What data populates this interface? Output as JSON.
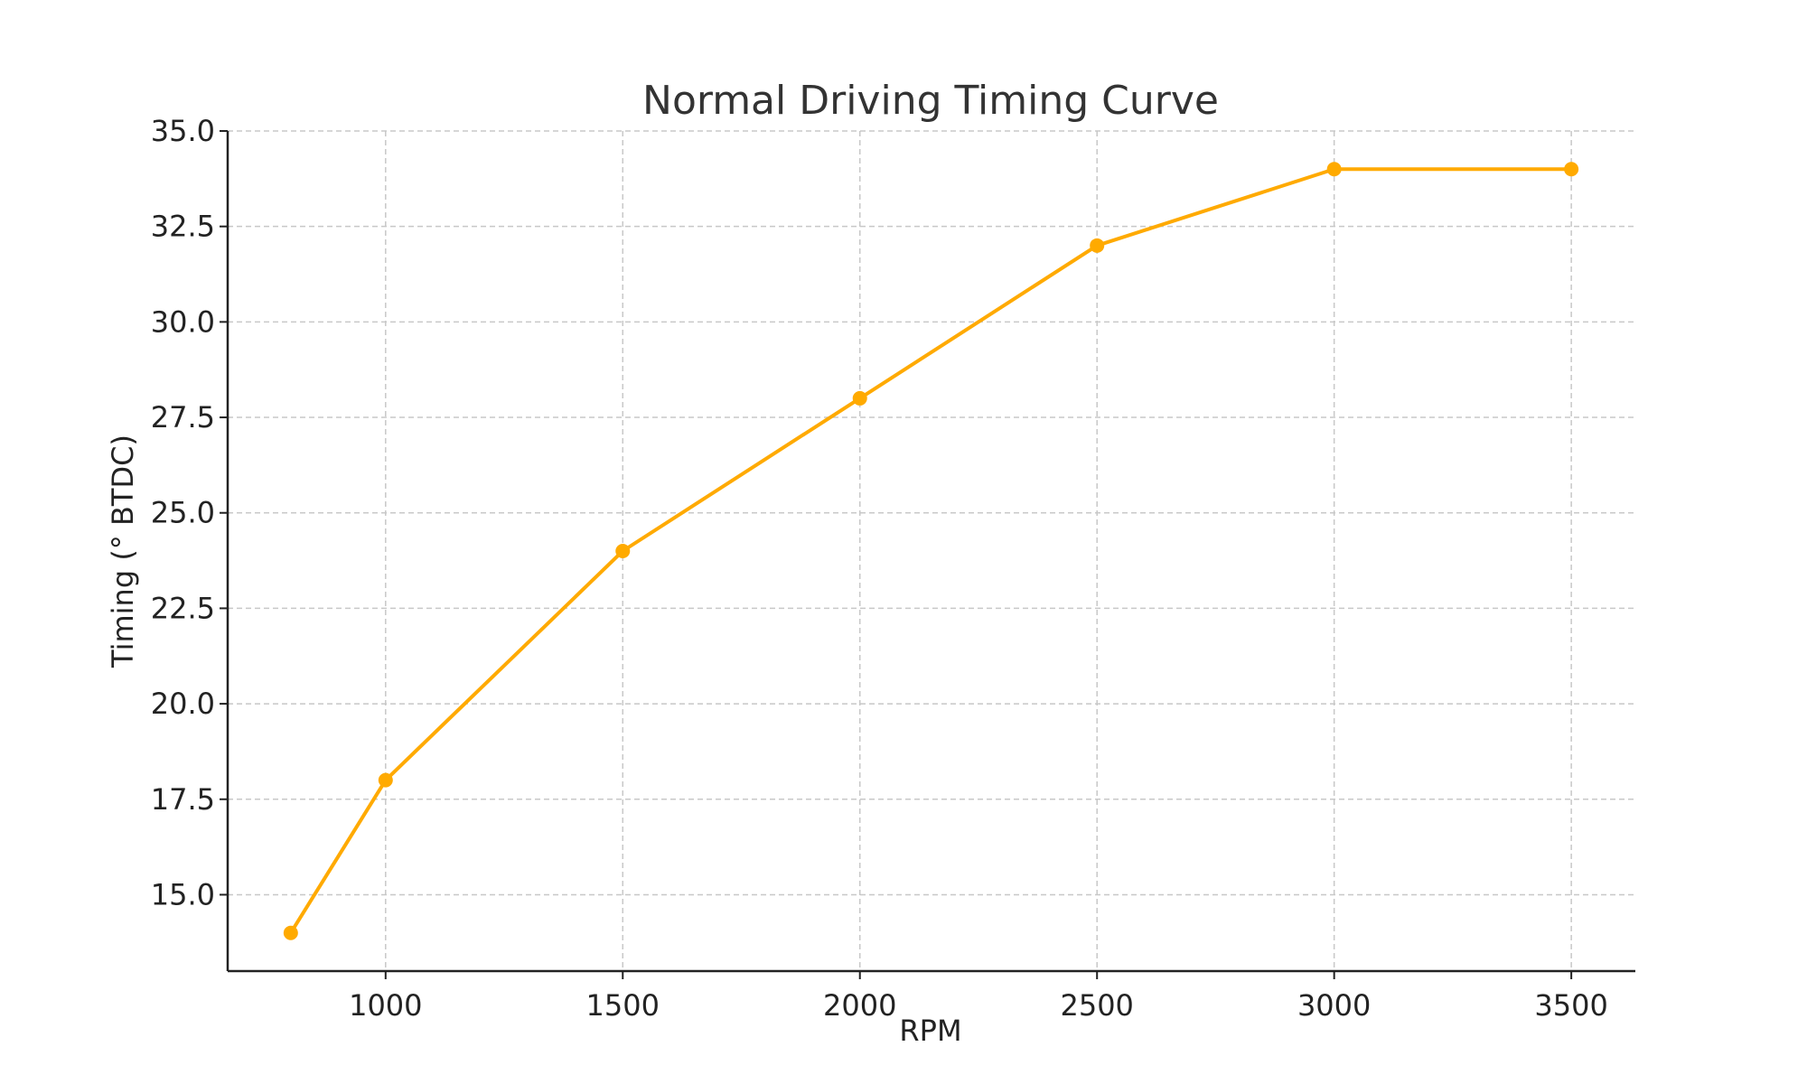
{
  "chart_data": {
    "type": "line",
    "title": "Normal Driving Timing Curve",
    "xlabel": "RPM",
    "ylabel": "Timing (° BTDC)",
    "x": [
      800,
      1000,
      1500,
      2000,
      2500,
      3000,
      3500
    ],
    "series": [
      {
        "values": [
          14,
          18,
          24,
          28,
          32,
          34,
          34
        ],
        "color": "#FFAA00"
      }
    ],
    "xlim": [
      667,
      3635
    ],
    "ylim": [
      13,
      35
    ],
    "xticks": [
      "1000",
      "1500",
      "2000",
      "2500",
      "3000",
      "3500"
    ],
    "yticks": [
      "15.0",
      "17.5",
      "20.0",
      "22.5",
      "25.0",
      "27.5",
      "30.0",
      "32.5",
      "35.0"
    ],
    "grid": true,
    "marker": "circle"
  }
}
